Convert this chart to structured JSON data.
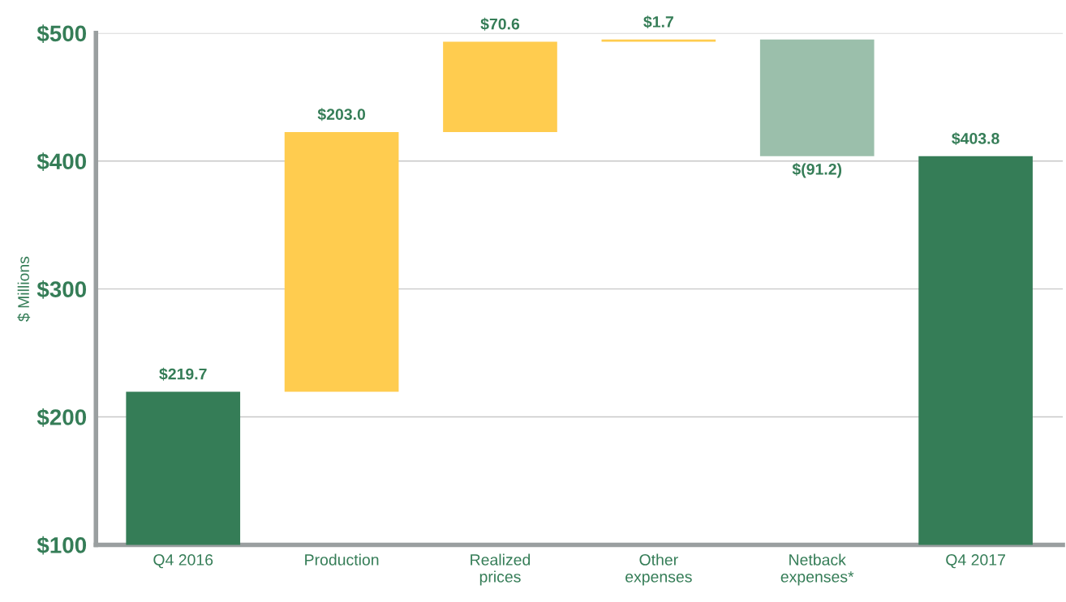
{
  "chart_data": {
    "type": "bar",
    "ylabel": "$ Millions",
    "categories": [
      "Q4 2016",
      "Production",
      "Realized\nprices",
      "Other\nexpenses",
      "Netback\nexpenses*",
      "Q4 2017"
    ],
    "values": [
      219.7,
      203.0,
      70.6,
      1.7,
      -91.2,
      403.8
    ],
    "base": [
      null,
      219.7,
      422.7,
      493.3,
      495.0,
      null
    ],
    "colors": [
      "#357d57",
      "#ffcc4f",
      "#ffcc4f",
      "#ffcc4f",
      "#9bbfab",
      "#357d57"
    ],
    "value_labels": [
      "$219.7",
      "$203.0",
      "$70.6",
      "$1.7",
      "$(91.2)",
      "$403.8"
    ],
    "ylim": [
      100,
      500
    ],
    "yticks": [
      {
        "value": 100,
        "label": "$100"
      },
      {
        "value": 200,
        "label": "$200"
      },
      {
        "value": 300,
        "label": "$300"
      },
      {
        "value": 400,
        "label": "$400"
      },
      {
        "value": 500,
        "label": "$500"
      }
    ],
    "grid": "y",
    "legend": false
  }
}
